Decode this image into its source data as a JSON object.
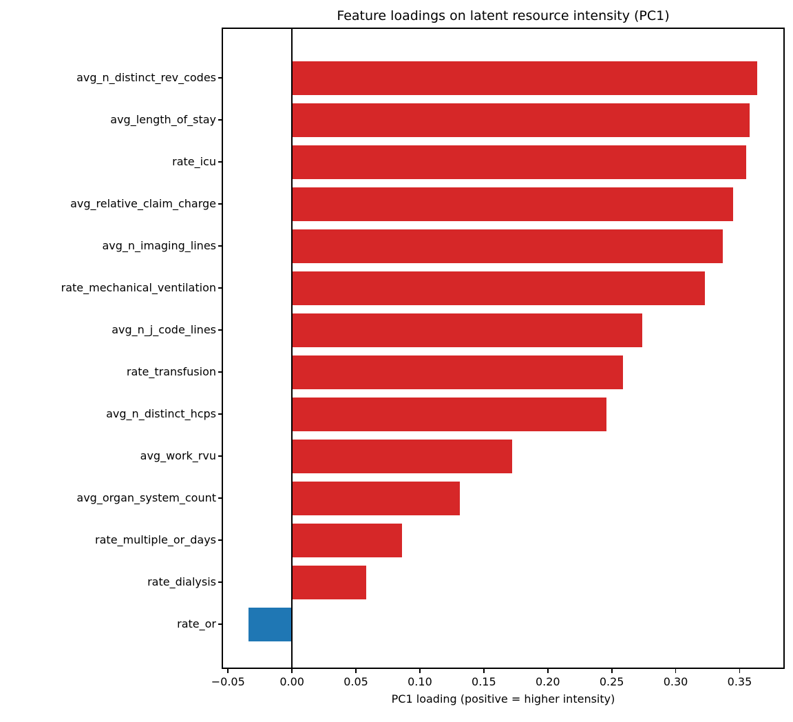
{
  "chart_data": {
    "type": "bar",
    "orientation": "horizontal",
    "title": "Feature loadings on latent resource intensity (PC1)",
    "xlabel": "PC1 loading (positive = higher intensity)",
    "ylabel": "",
    "categories": [
      "avg_n_distinct_rev_codes",
      "avg_length_of_stay",
      "rate_icu",
      "avg_relative_claim_charge",
      "avg_n_imaging_lines",
      "rate_mechanical_ventilation",
      "avg_n_j_code_lines",
      "rate_transfusion",
      "avg_n_distinct_hcps",
      "avg_work_rvu",
      "avg_organ_system_count",
      "rate_multiple_or_days",
      "rate_dialysis",
      "rate_or"
    ],
    "values": [
      0.364,
      0.358,
      0.355,
      0.345,
      0.337,
      0.323,
      0.274,
      0.259,
      0.246,
      0.172,
      0.131,
      0.086,
      0.058,
      -0.034
    ],
    "xlim": [
      -0.0539,
      0.3842
    ],
    "xticks": [
      -0.05,
      0.0,
      0.05,
      0.1,
      0.15,
      0.2,
      0.25,
      0.3,
      0.35
    ],
    "xtick_labels": [
      "−0.05",
      "0.00",
      "0.05",
      "0.10",
      "0.15",
      "0.20",
      "0.25",
      "0.30",
      "0.35"
    ],
    "colors": {
      "positive_bar": "#d62728",
      "negative_bar": "#1f77b4",
      "spine": "#000000",
      "zero_line": "#000000"
    },
    "grid": false,
    "legend": null,
    "zero_line_at": 0
  }
}
